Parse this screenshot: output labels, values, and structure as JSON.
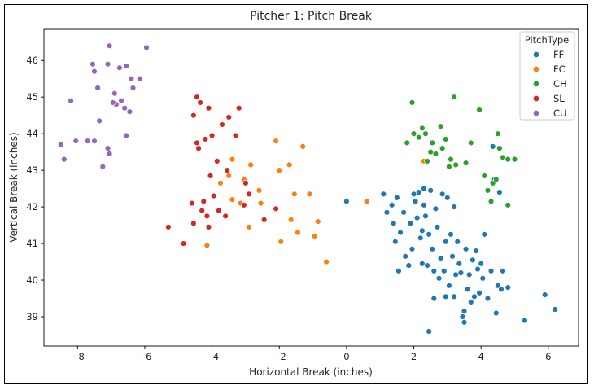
{
  "chart_data": {
    "type": "scatter",
    "title": "Pitcher 1: Pitch Break",
    "xlabel": "Horizontal Break (inches)",
    "ylabel": "Vertical Break (inches)",
    "xlim": [
      -9.0,
      6.9
    ],
    "ylim": [
      38.2,
      46.85
    ],
    "xticks": [
      -8,
      -6,
      -4,
      -2,
      0,
      2,
      4,
      6
    ],
    "xtick_labels": [
      "−8",
      "−6",
      "−4",
      "−2",
      "0",
      "2",
      "4",
      "6"
    ],
    "yticks": [
      39,
      40,
      41,
      42,
      43,
      44,
      45,
      46
    ],
    "ytick_labels": [
      "39",
      "40",
      "41",
      "42",
      "43",
      "44",
      "45",
      "46"
    ],
    "grid": false,
    "legend": {
      "title": "PitchType",
      "placement": "top-right"
    },
    "series": [
      {
        "name": "FF",
        "color": "#1f77b4",
        "points": [
          [
            0.0,
            42.15
          ],
          [
            1.1,
            42.35
          ],
          [
            1.2,
            41.85
          ],
          [
            1.35,
            42.05
          ],
          [
            1.4,
            41.55
          ],
          [
            1.45,
            41.05
          ],
          [
            1.5,
            42.25
          ],
          [
            1.55,
            40.25
          ],
          [
            1.6,
            41.3
          ],
          [
            1.7,
            41.85
          ],
          [
            1.75,
            40.65
          ],
          [
            1.85,
            40.4
          ],
          [
            1.9,
            41.55
          ],
          [
            1.95,
            40.85
          ],
          [
            2.0,
            42.35
          ],
          [
            2.05,
            42.15
          ],
          [
            2.1,
            41.7
          ],
          [
            2.15,
            42.4
          ],
          [
            2.2,
            41.15
          ],
          [
            2.25,
            40.45
          ],
          [
            2.3,
            42.05
          ],
          [
            2.35,
            41.75
          ],
          [
            2.4,
            40.4
          ],
          [
            2.45,
            41.25
          ],
          [
            2.5,
            42.45
          ],
          [
            2.55,
            40.85
          ],
          [
            2.6,
            40.25
          ],
          [
            2.65,
            41.95
          ],
          [
            2.7,
            41.45
          ],
          [
            2.75,
            40.05
          ],
          [
            2.8,
            40.6
          ],
          [
            2.85,
            42.35
          ],
          [
            2.9,
            40.25
          ],
          [
            2.95,
            41.05
          ],
          [
            3.0,
            42.25
          ],
          [
            3.05,
            39.85
          ],
          [
            3.1,
            41.25
          ],
          [
            3.15,
            40.65
          ],
          [
            3.2,
            39.55
          ],
          [
            3.25,
            40.15
          ],
          [
            3.3,
            41.05
          ],
          [
            3.35,
            40.45
          ],
          [
            3.4,
            40.2
          ],
          [
            3.45,
            39.0
          ],
          [
            3.5,
            38.85
          ],
          [
            3.55,
            40.85
          ],
          [
            3.6,
            39.75
          ],
          [
            3.65,
            40.15
          ],
          [
            3.7,
            39.4
          ],
          [
            3.75,
            40.55
          ],
          [
            3.8,
            39.55
          ],
          [
            3.85,
            40.8
          ],
          [
            3.9,
            40.3
          ],
          [
            3.95,
            39.65
          ],
          [
            4.0,
            40.45
          ],
          [
            4.05,
            40.05
          ],
          [
            4.1,
            41.25
          ],
          [
            4.2,
            39.5
          ],
          [
            4.3,
            40.25
          ],
          [
            4.4,
            42.75
          ],
          [
            4.45,
            39.1
          ],
          [
            4.5,
            39.85
          ],
          [
            4.55,
            42.4
          ],
          [
            4.6,
            39.75
          ],
          [
            4.65,
            40.25
          ],
          [
            4.8,
            39.8
          ],
          [
            5.3,
            38.9
          ],
          [
            5.9,
            39.6
          ],
          [
            6.2,
            39.2
          ],
          [
            2.45,
            38.6
          ],
          [
            3.5,
            39.15
          ],
          [
            4.35,
            43.65
          ],
          [
            2.3,
            42.5
          ],
          [
            3.2,
            42.0
          ],
          [
            2.25,
            41.35
          ],
          [
            2.6,
            39.5
          ],
          [
            2.95,
            39.55
          ]
        ]
      },
      {
        "name": "FC",
        "color": "#ff7f0e",
        "points": [
          [
            0.6,
            42.15
          ],
          [
            2.3,
            43.25
          ],
          [
            -0.6,
            40.5
          ],
          [
            -0.85,
            41.6
          ],
          [
            -0.95,
            41.2
          ],
          [
            -1.1,
            42.35
          ],
          [
            -1.3,
            43.65
          ],
          [
            -1.45,
            41.3
          ],
          [
            -1.55,
            42.35
          ],
          [
            -1.65,
            41.65
          ],
          [
            -1.7,
            43.15
          ],
          [
            -1.95,
            41.05
          ],
          [
            -2.0,
            43.0
          ],
          [
            -2.1,
            43.8
          ],
          [
            -2.55,
            42.1
          ],
          [
            -2.6,
            42.45
          ],
          [
            -2.9,
            41.45
          ],
          [
            -2.85,
            43.15
          ],
          [
            -3.05,
            42.75
          ],
          [
            -3.15,
            42.1
          ],
          [
            -3.4,
            42.2
          ],
          [
            -3.5,
            42.85
          ],
          [
            -3.4,
            43.3
          ],
          [
            -3.75,
            42.65
          ],
          [
            -4.15,
            40.95
          ]
        ]
      },
      {
        "name": "CH",
        "color": "#2ca02c",
        "points": [
          [
            1.95,
            44.85
          ],
          [
            2.0,
            44.0
          ],
          [
            2.15,
            43.9
          ],
          [
            2.25,
            44.15
          ],
          [
            2.35,
            44.0
          ],
          [
            2.5,
            43.5
          ],
          [
            2.55,
            43.75
          ],
          [
            2.65,
            43.45
          ],
          [
            2.8,
            44.2
          ],
          [
            2.85,
            43.6
          ],
          [
            2.95,
            43.85
          ],
          [
            3.1,
            43.3
          ],
          [
            3.25,
            43.15
          ],
          [
            3.05,
            43.1
          ],
          [
            3.55,
            43.2
          ],
          [
            3.7,
            43.75
          ],
          [
            3.2,
            45.0
          ],
          [
            3.95,
            44.65
          ],
          [
            4.1,
            42.85
          ],
          [
            4.2,
            42.45
          ],
          [
            4.3,
            42.15
          ],
          [
            4.35,
            42.65
          ],
          [
            4.45,
            42.75
          ],
          [
            4.5,
            44.0
          ],
          [
            4.65,
            43.35
          ],
          [
            4.8,
            43.3
          ],
          [
            5.0,
            43.3
          ],
          [
            4.8,
            42.05
          ],
          [
            2.4,
            43.25
          ],
          [
            1.8,
            43.75
          ],
          [
            4.55,
            43.6
          ]
        ]
      },
      {
        "name": "SL",
        "color": "#d62728",
        "points": [
          [
            -5.3,
            41.45
          ],
          [
            -4.85,
            41.0
          ],
          [
            -4.55,
            41.55
          ],
          [
            -4.6,
            42.1
          ],
          [
            -4.55,
            44.5
          ],
          [
            -4.45,
            43.75
          ],
          [
            -4.4,
            43.6
          ],
          [
            -4.35,
            44.85
          ],
          [
            -4.2,
            43.85
          ],
          [
            -4.25,
            42.15
          ],
          [
            -4.15,
            41.75
          ],
          [
            -4.1,
            41.45
          ],
          [
            -4.1,
            44.7
          ],
          [
            -4.05,
            42.85
          ],
          [
            -4.0,
            43.95
          ],
          [
            -3.95,
            42.3
          ],
          [
            -3.85,
            43.25
          ],
          [
            -3.7,
            44.25
          ],
          [
            -3.6,
            41.75
          ],
          [
            -3.55,
            43.0
          ],
          [
            -3.5,
            44.45
          ],
          [
            -3.3,
            43.95
          ],
          [
            -3.2,
            44.7
          ],
          [
            -3.05,
            42.05
          ],
          [
            -3.0,
            42.65
          ],
          [
            -2.9,
            42.35
          ],
          [
            -2.45,
            41.65
          ],
          [
            -2.1,
            41.95
          ],
          [
            -4.3,
            41.9
          ],
          [
            -4.45,
            45.0
          ],
          [
            -3.8,
            41.9
          ]
        ]
      },
      {
        "name": "CU",
        "color": "#9467bd",
        "points": [
          [
            -8.5,
            43.7
          ],
          [
            -8.4,
            43.3
          ],
          [
            -8.2,
            44.9
          ],
          [
            -8.05,
            43.8
          ],
          [
            -7.7,
            43.8
          ],
          [
            -7.5,
            43.8
          ],
          [
            -7.55,
            45.9
          ],
          [
            -7.5,
            45.7
          ],
          [
            -7.35,
            44.35
          ],
          [
            -7.25,
            43.1
          ],
          [
            -7.1,
            43.6
          ],
          [
            -7.05,
            43.45
          ],
          [
            -7.1,
            45.9
          ],
          [
            -7.05,
            46.4
          ],
          [
            -6.9,
            45.1
          ],
          [
            -6.85,
            44.8
          ],
          [
            -6.75,
            45.8
          ],
          [
            -6.7,
            44.9
          ],
          [
            -6.6,
            44.7
          ],
          [
            -6.55,
            43.95
          ],
          [
            -6.55,
            45.85
          ],
          [
            -6.45,
            44.6
          ],
          [
            -6.4,
            45.5
          ],
          [
            -6.35,
            45.25
          ],
          [
            -6.15,
            45.5
          ],
          [
            -5.95,
            46.35
          ],
          [
            -6.95,
            44.85
          ],
          [
            -7.4,
            45.25
          ]
        ]
      }
    ]
  }
}
